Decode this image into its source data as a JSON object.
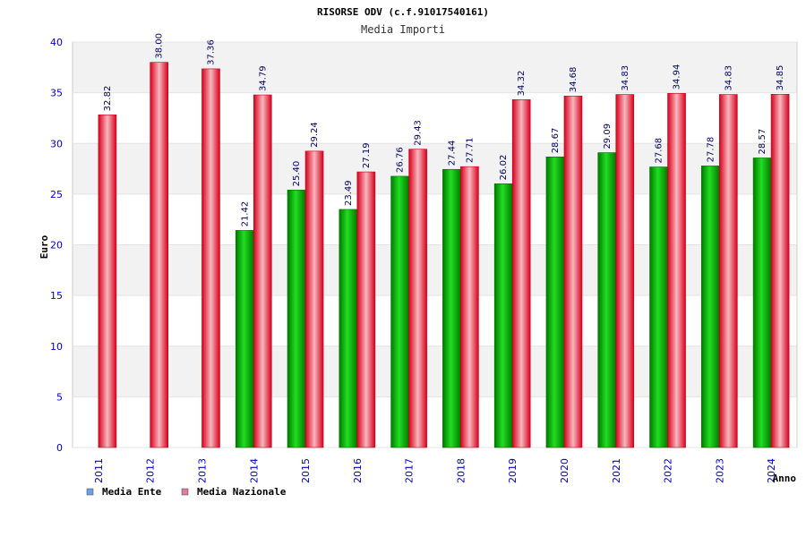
{
  "chart_data": {
    "type": "bar",
    "title": "RISORSE ODV (c.f.91017540161)",
    "subtitle": "Media Importi",
    "xlabel": "Anno",
    "ylabel": "Euro",
    "ylim": [
      0,
      40
    ],
    "yticks": [
      0,
      5,
      10,
      15,
      20,
      25,
      30,
      35,
      40
    ],
    "categories": [
      "2011",
      "2012",
      "2013",
      "2014",
      "2015",
      "2016",
      "2017",
      "2018",
      "2019",
      "2020",
      "2021",
      "2022",
      "2023",
      "2024"
    ],
    "series": [
      {
        "name": "Media Ente",
        "color": "#00aa00",
        "legend_color": "#6aa2e8",
        "values": [
          null,
          null,
          null,
          21.42,
          25.4,
          23.49,
          26.76,
          27.44,
          26.02,
          28.67,
          29.09,
          27.68,
          27.78,
          28.57
        ]
      },
      {
        "name": "Media Nazionale",
        "color": "#e8102a",
        "legend_color": "#e07aa0",
        "values": [
          32.82,
          38.0,
          37.36,
          34.79,
          29.24,
          27.19,
          29.43,
          27.71,
          34.32,
          34.68,
          34.83,
          34.94,
          34.83,
          34.85
        ]
      }
    ],
    "grid": true,
    "legend_position": "bottom-left"
  }
}
